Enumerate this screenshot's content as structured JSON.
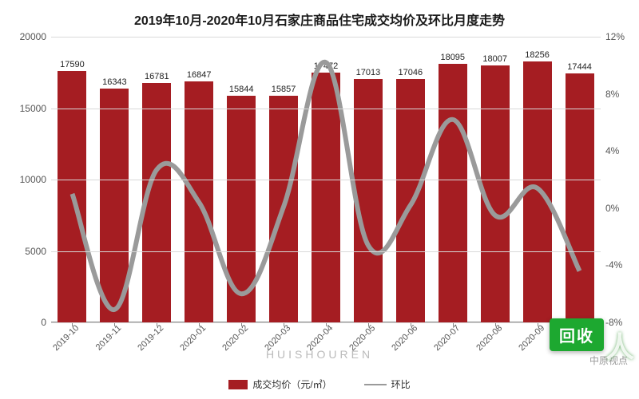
{
  "chart": {
    "type": "combo_bar_line",
    "title": "2019年10月-2020年10月石家庄商品住宅成交均价及环比月度走势",
    "title_fontsize": 16,
    "title_color": "#1a1a1a",
    "background_color": "#ffffff",
    "grid_color": "#d9d9d9",
    "axis_color": "#888888",
    "categories": [
      "2019-10",
      "2019-11",
      "2019-12",
      "2020-01",
      "2020-02",
      "2020-03",
      "2020-04",
      "2020-05",
      "2020-06",
      "2020-07",
      "2020-08",
      "2020-09",
      "2020-10"
    ],
    "bars": {
      "label": "成交均价（元/㎡）",
      "values": [
        17590,
        16343,
        16781,
        16847,
        15844,
        15857,
        17472,
        17013,
        17046,
        18095,
        18007,
        18256,
        17444
      ],
      "color": "#a51d22",
      "bar_width": 0.68,
      "show_value_labels": true,
      "value_label_fontsize": 11
    },
    "line": {
      "label": "环比",
      "values_pct": [
        1.0,
        -7.1,
        2.7,
        0.4,
        -6.0,
        0.1,
        10.2,
        -2.6,
        0.2,
        6.2,
        -0.5,
        1.4,
        -4.4
      ],
      "color": "#9a9a9a",
      "line_width": 2
    },
    "y_left": {
      "min": 0,
      "max": 20000,
      "step": 5000,
      "label_fontsize": 12
    },
    "y_right": {
      "min": -8,
      "max": 12,
      "step": 4,
      "suffix": "%",
      "label_fontsize": 12
    },
    "x_label_rotation_deg": -45,
    "x_label_fontsize": 11
  },
  "overlay": {
    "watermark_text": "中原视点",
    "site_text": "HUISHOUREN",
    "badge_text": "回收",
    "badge_side_text": "人",
    "badge_bg": "#1da830",
    "badge_side_color": "rgba(255,255,255,0.85)"
  }
}
